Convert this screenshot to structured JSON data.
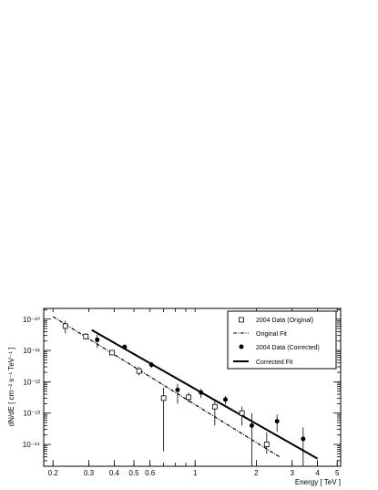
{
  "chart_data": {
    "type": "scatter",
    "title": "",
    "xlabel": "Energy [ TeV ]",
    "ylabel": "dN/dE  [ cm⁻² s⁻¹ TeV⁻¹ ]",
    "x_scale": "log",
    "y_scale": "log",
    "xlim": [
      0.18,
      5.2
    ],
    "ylim": [
      2e-15,
      2.2e-10
    ],
    "grid": false,
    "legend_position": "top-right",
    "x_tick_labels": [
      "0.2",
      "0.3",
      "0.4",
      "0.5",
      "0.6",
      "1",
      "2",
      "3",
      "4",
      "5"
    ],
    "x_tick_values": [
      0.2,
      0.3,
      0.4,
      0.5,
      0.6,
      1,
      2,
      3,
      4,
      5
    ],
    "y_tick_labels": [
      "10⁻¹⁰",
      "10⁻¹¹",
      "10⁻¹²",
      "10⁻¹³",
      "10⁻¹⁴"
    ],
    "y_tick_values": [
      1e-10,
      1e-11,
      1e-12,
      1e-13,
      1e-14
    ],
    "series": [
      {
        "name": "2004 Data (Original)",
        "marker": "open-square",
        "points": [
          {
            "x": 0.23,
            "y": 6e-11,
            "ylo": 3.5e-11,
            "yhi": 9e-11
          },
          {
            "x": 0.29,
            "y": 2.8e-11,
            "ylo": 2.2e-11,
            "yhi": 3.6e-11
          },
          {
            "x": 0.39,
            "y": 8.5e-12,
            "ylo": 7e-12,
            "yhi": 1e-11
          },
          {
            "x": 0.53,
            "y": 2.2e-12,
            "ylo": 1.6e-12,
            "yhi": 3e-12
          },
          {
            "x": 0.7,
            "y": 3e-13,
            "ylo": 6e-15,
            "yhi": 6.5e-13
          },
          {
            "x": 0.93,
            "y": 3.2e-13,
            "ylo": 2.2e-13,
            "yhi": 4.5e-13
          },
          {
            "x": 1.25,
            "y": 1.6e-13,
            "ylo": 4e-14,
            "yhi": 2.6e-13
          },
          {
            "x": 1.7,
            "y": 1e-13,
            "ylo": 4e-14,
            "yhi": 1.6e-13
          },
          {
            "x": 2.25,
            "y": 1e-14,
            "ylo": 5e-15,
            "yhi": 2.4e-14
          }
        ]
      },
      {
        "name": "2004 Data (Corrected)",
        "marker": "filled-circle",
        "points": [
          {
            "x": 0.33,
            "y": 2.2e-11,
            "ylo": 1.2e-11,
            "yhi": 3.2e-11
          },
          {
            "x": 0.45,
            "y": 1.3e-11,
            "ylo": 1.1e-11,
            "yhi": 1.5e-11
          },
          {
            "x": 0.61,
            "y": 3.5e-12,
            "ylo": 2.8e-12,
            "yhi": 4.3e-12
          },
          {
            "x": 0.82,
            "y": 5.5e-13,
            "ylo": 2e-13,
            "yhi": 8.5e-13
          },
          {
            "x": 1.07,
            "y": 4.5e-13,
            "ylo": 3e-13,
            "yhi": 6e-13
          },
          {
            "x": 1.41,
            "y": 2.7e-13,
            "ylo": 1.9e-13,
            "yhi": 3.5e-13
          },
          {
            "x": 1.9,
            "y": 4e-14,
            "ylo": 2e-15,
            "yhi": 1e-13
          },
          {
            "x": 2.53,
            "y": 5.5e-14,
            "ylo": 2.5e-14,
            "yhi": 9e-14
          },
          {
            "x": 3.4,
            "y": 1.5e-14,
            "ylo": 2e-15,
            "yhi": 3.5e-14
          }
        ]
      },
      {
        "name": "Original Fit",
        "line_style": "dash-dot",
        "x": [
          0.2,
          2.6
        ],
        "y": [
          1.2e-10,
          4e-15
        ]
      },
      {
        "name": "Corrected Fit",
        "line_style": "solid",
        "x": [
          0.31,
          4.0
        ],
        "y": [
          4.5e-11,
          3.5e-15
        ]
      }
    ]
  },
  "legend": {
    "entries": [
      {
        "label": "2004 Data (Original)",
        "symbol": "open-square"
      },
      {
        "label": "Original Fit",
        "symbol": "dash-dot-line"
      },
      {
        "label": "2004 Data (Corrected)",
        "symbol": "filled-circle"
      },
      {
        "label": "Corrected Fit",
        "symbol": "solid-line"
      }
    ]
  }
}
